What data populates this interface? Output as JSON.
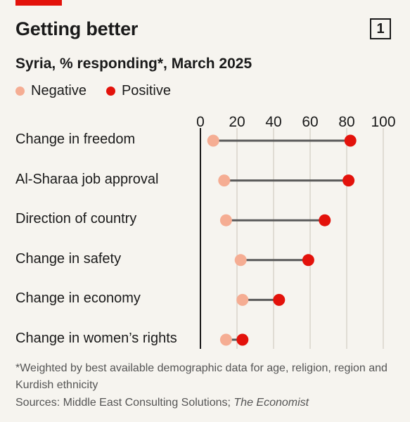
{
  "header": {
    "title": "Getting better",
    "chart_number": "1",
    "subtitle": "Syria, % responding*, March 2025"
  },
  "colors": {
    "negative": "#f5ad93",
    "positive": "#e3120b",
    "accent": "#e3120b",
    "line": "#5a5a5a"
  },
  "chart_data": {
    "type": "dot-range",
    "title": "Getting better",
    "subtitle": "Syria, % responding*, March 2025",
    "xlim": [
      0,
      100
    ],
    "x_ticks": [
      "0",
      "20",
      "40",
      "60",
      "80",
      "100"
    ],
    "legend": [
      "Negative",
      "Positive"
    ],
    "legend_position": "top-left",
    "grid": "vertical",
    "categories": [
      "Change in freedom",
      "Al-Sharaa job approval",
      "Direction of country",
      "Change in safety",
      "Change in economy",
      "Change in women’s rights"
    ],
    "series": [
      {
        "name": "Negative",
        "values": [
          7,
          13,
          14,
          22,
          23,
          14
        ]
      },
      {
        "name": "Positive",
        "values": [
          82,
          81,
          68,
          59,
          43,
          23
        ]
      }
    ]
  },
  "footnote": "*Weighted by best available demographic data for age, religion, region and Kurdish ethnicity",
  "source": {
    "prefix": "Sources: Middle East Consulting Solutions; ",
    "publication": "The Economist"
  }
}
